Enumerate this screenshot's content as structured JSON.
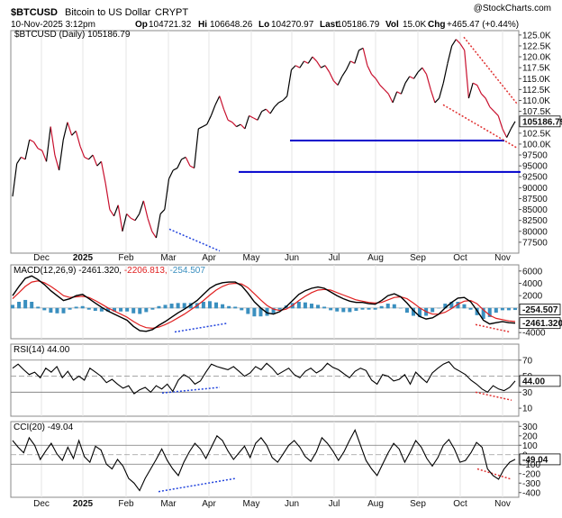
{
  "header": {
    "symbol": "$BTCUSD",
    "name": "Bitcoin to US Dollar",
    "exchange": "CRYPT",
    "watermark": "@StockCharts.com",
    "date_time": "10-Nov-2025 3:12pm",
    "open_label": "Op",
    "open": "104721.32",
    "high_label": "Hi",
    "high": "106648.26",
    "low_label": "Lo",
    "low": "104270.97",
    "last_label": "Last",
    "last": "105186.79",
    "vol_label": "Vol",
    "vol": "15.0K",
    "chg_label": "Chg",
    "chg": "+465.47 (+0.44%)",
    "legend": "$BTCUSD (Daily) 105186.79"
  },
  "colors": {
    "price": "#000000",
    "price_down": "#c8102e",
    "support": "#0000cc",
    "trend_red": "#e03030",
    "trend_blue": "#2244dd",
    "macd_line": "#000000",
    "signal_line": "#e02020",
    "histogram": "#3a8fbf",
    "rsi_line": "#000000",
    "overbought_fill": "#4a8a4a",
    "oversold_fill": "#a05050",
    "current_box": "#ffffff"
  },
  "x_labels": [
    "Dec",
    "2025",
    "Feb",
    "Mar",
    "Apr",
    "May",
    "Jun",
    "Jul",
    "Aug",
    "Sep",
    "Oct",
    "Nov"
  ],
  "chart_data": [
    {
      "type": "line",
      "panel": "price",
      "series_name": "$BTCUSD (Daily)",
      "y_ticks": [
        "125.0K",
        "122.5K",
        "120.0K",
        "117.5K",
        "115.0K",
        "112.5K",
        "110.0K",
        "107.5K",
        "105186.79",
        "102.5K",
        "100.0K",
        "97500",
        "95000",
        "92500",
        "90000",
        "87500",
        "85000",
        "82500",
        "80000",
        "77500"
      ],
      "ylim": [
        75000,
        126000
      ],
      "current_value": "105186.79",
      "months": [
        "Dec",
        "2025",
        "Feb",
        "Mar",
        "Apr",
        "May",
        "Jun",
        "Jul",
        "Aug",
        "Sep",
        "Oct",
        "Nov"
      ],
      "values": [
        88000,
        95500,
        97000,
        96500,
        101000,
        100500,
        99000,
        98500,
        96000,
        104000,
        97500,
        94000,
        101000,
        105000,
        102000,
        103000,
        99500,
        97000,
        96500,
        97500,
        95000,
        96000,
        91000,
        85000,
        83500,
        86000,
        80000,
        84000,
        83000,
        82500,
        84000,
        87000,
        83000,
        80000,
        78500,
        84000,
        85000,
        92000,
        94000,
        94500,
        96500,
        97000,
        95000,
        94500,
        103500,
        104000,
        104500,
        106500,
        109000,
        111000,
        108000,
        105500,
        105000,
        104000,
        104500,
        103500,
        106500,
        106000,
        105500,
        107500,
        108000,
        107000,
        108500,
        109500,
        110000,
        111000,
        117000,
        118000,
        117500,
        119000,
        118500,
        120000,
        119000,
        117500,
        118000,
        116500,
        114500,
        113500,
        115500,
        117000,
        119000,
        118500,
        121500,
        122000,
        118000,
        116000,
        115000,
        113500,
        112500,
        111500,
        109500,
        112000,
        111500,
        114000,
        115500,
        115000,
        116500,
        117500,
        116000,
        112500,
        109500,
        110500,
        114000,
        118500,
        122500,
        124000,
        123000,
        121500,
        110500,
        114000,
        113500,
        111500,
        110500,
        108500,
        107500,
        106500,
        103500,
        101500,
        103500,
        105186.79
      ]
    },
    {
      "type": "line",
      "panel": "macd",
      "label": "MACD(12,26,9)",
      "macd": "-2461.320",
      "signal": "-2206.813",
      "hist": "-254.507",
      "y_ticks": [
        "6000",
        "4000",
        "2000",
        "-254.507",
        "-2461.320",
        "-4000"
      ],
      "ylim": [
        -5000,
        7000
      ],
      "macd_values": [
        2000,
        3500,
        4800,
        5200,
        4600,
        3800,
        2800,
        2000,
        1200,
        1500,
        2000,
        2200,
        1500,
        800,
        100,
        -500,
        -1000,
        -1500,
        -2000,
        -3000,
        -3700,
        -3800,
        -3500,
        -2800,
        -2200,
        -1500,
        -800,
        -200,
        500,
        1200,
        2200,
        3200,
        3800,
        4100,
        4200,
        4200,
        3600,
        2400,
        1000,
        0,
        -800,
        -1000,
        -600,
        200,
        1200,
        2200,
        2800,
        3200,
        3400,
        3200,
        2600,
        2000,
        1500,
        1100,
        900,
        900,
        700,
        600,
        1200,
        2000,
        2300,
        1800,
        800,
        -400,
        -1400,
        -1800,
        -1600,
        -1000,
        0,
        900,
        1600,
        1700,
        1000,
        -400,
        -2000,
        -2600,
        -2400,
        -2200,
        -2400,
        -2461.32
      ],
      "signal_values": [
        1500,
        2500,
        3500,
        4200,
        4400,
        4100,
        3500,
        2800,
        2000,
        1700,
        1800,
        1900,
        1700,
        1200,
        600,
        0,
        -500,
        -1000,
        -1500,
        -2200,
        -2800,
        -3200,
        -3300,
        -3100,
        -2700,
        -2200,
        -1600,
        -1000,
        -300,
        400,
        1200,
        2100,
        2900,
        3500,
        3900,
        4000,
        3900,
        3300,
        2300,
        1300,
        400,
        -200,
        -400,
        -200,
        400,
        1200,
        1900,
        2500,
        2900,
        3000,
        2900,
        2500,
        2100,
        1700,
        1300,
        1100,
        900,
        800,
        900,
        1300,
        1700,
        1800,
        1500,
        800,
        0,
        -600,
        -1000,
        -1000,
        -700,
        -100,
        600,
        1100,
        1200,
        700,
        -300,
        -1200,
        -1700,
        -1900,
        -2100,
        -2206.813
      ]
    },
    {
      "type": "line",
      "panel": "rsi",
      "label": "RSI(14)",
      "value": "44.00",
      "y_ticks": [
        "70",
        "50",
        "44.00",
        "30",
        "10"
      ],
      "ylim": [
        0,
        90
      ],
      "values": [
        60,
        65,
        58,
        52,
        55,
        48,
        60,
        55,
        62,
        48,
        56,
        45,
        50,
        45,
        60,
        55,
        50,
        42,
        46,
        40,
        35,
        38,
        28,
        33,
        36,
        30,
        38,
        34,
        40,
        31,
        45,
        52,
        48,
        40,
        44,
        55,
        65,
        62,
        60,
        58,
        62,
        56,
        50,
        54,
        62,
        58,
        66,
        60,
        52,
        56,
        60,
        52,
        48,
        56,
        60,
        54,
        58,
        66,
        61,
        58,
        53,
        48,
        56,
        60,
        57,
        45,
        40,
        52,
        50,
        44,
        46,
        52,
        40,
        55,
        48,
        42,
        54,
        60,
        65,
        68,
        60,
        56,
        52,
        45,
        40,
        34,
        30,
        38,
        34,
        32,
        36,
        44
      ]
    },
    {
      "type": "line",
      "panel": "cci",
      "label": "CCI(20)",
      "value": "-49.04",
      "y_ticks": [
        "300",
        "200",
        "100",
        "0",
        "-49.04",
        "-100",
        "-200",
        "-300",
        "-400"
      ],
      "ylim": [
        -450,
        350
      ],
      "values": [
        150,
        80,
        20,
        180,
        100,
        -50,
        40,
        120,
        10,
        -60,
        80,
        -40,
        150,
        -20,
        -80,
        90,
        50,
        -100,
        -150,
        -50,
        -120,
        -250,
        -300,
        -380,
        -250,
        -150,
        -50,
        60,
        -60,
        -150,
        -220,
        -80,
        30,
        120,
        60,
        -40,
        80,
        200,
        150,
        40,
        -50,
        20,
        90,
        -30,
        120,
        180,
        100,
        -30,
        -80,
        10,
        100,
        150,
        80,
        -20,
        -70,
        30,
        180,
        120,
        40,
        -60,
        30,
        150,
        260,
        100,
        -60,
        -150,
        -220,
        -100,
        20,
        120,
        60,
        -80,
        30,
        150,
        80,
        -40,
        -120,
        -30,
        100,
        160,
        60,
        -80,
        -60,
        20,
        130,
        80,
        -150,
        -220,
        -260,
        -150,
        -80,
        -49.04
      ]
    }
  ]
}
